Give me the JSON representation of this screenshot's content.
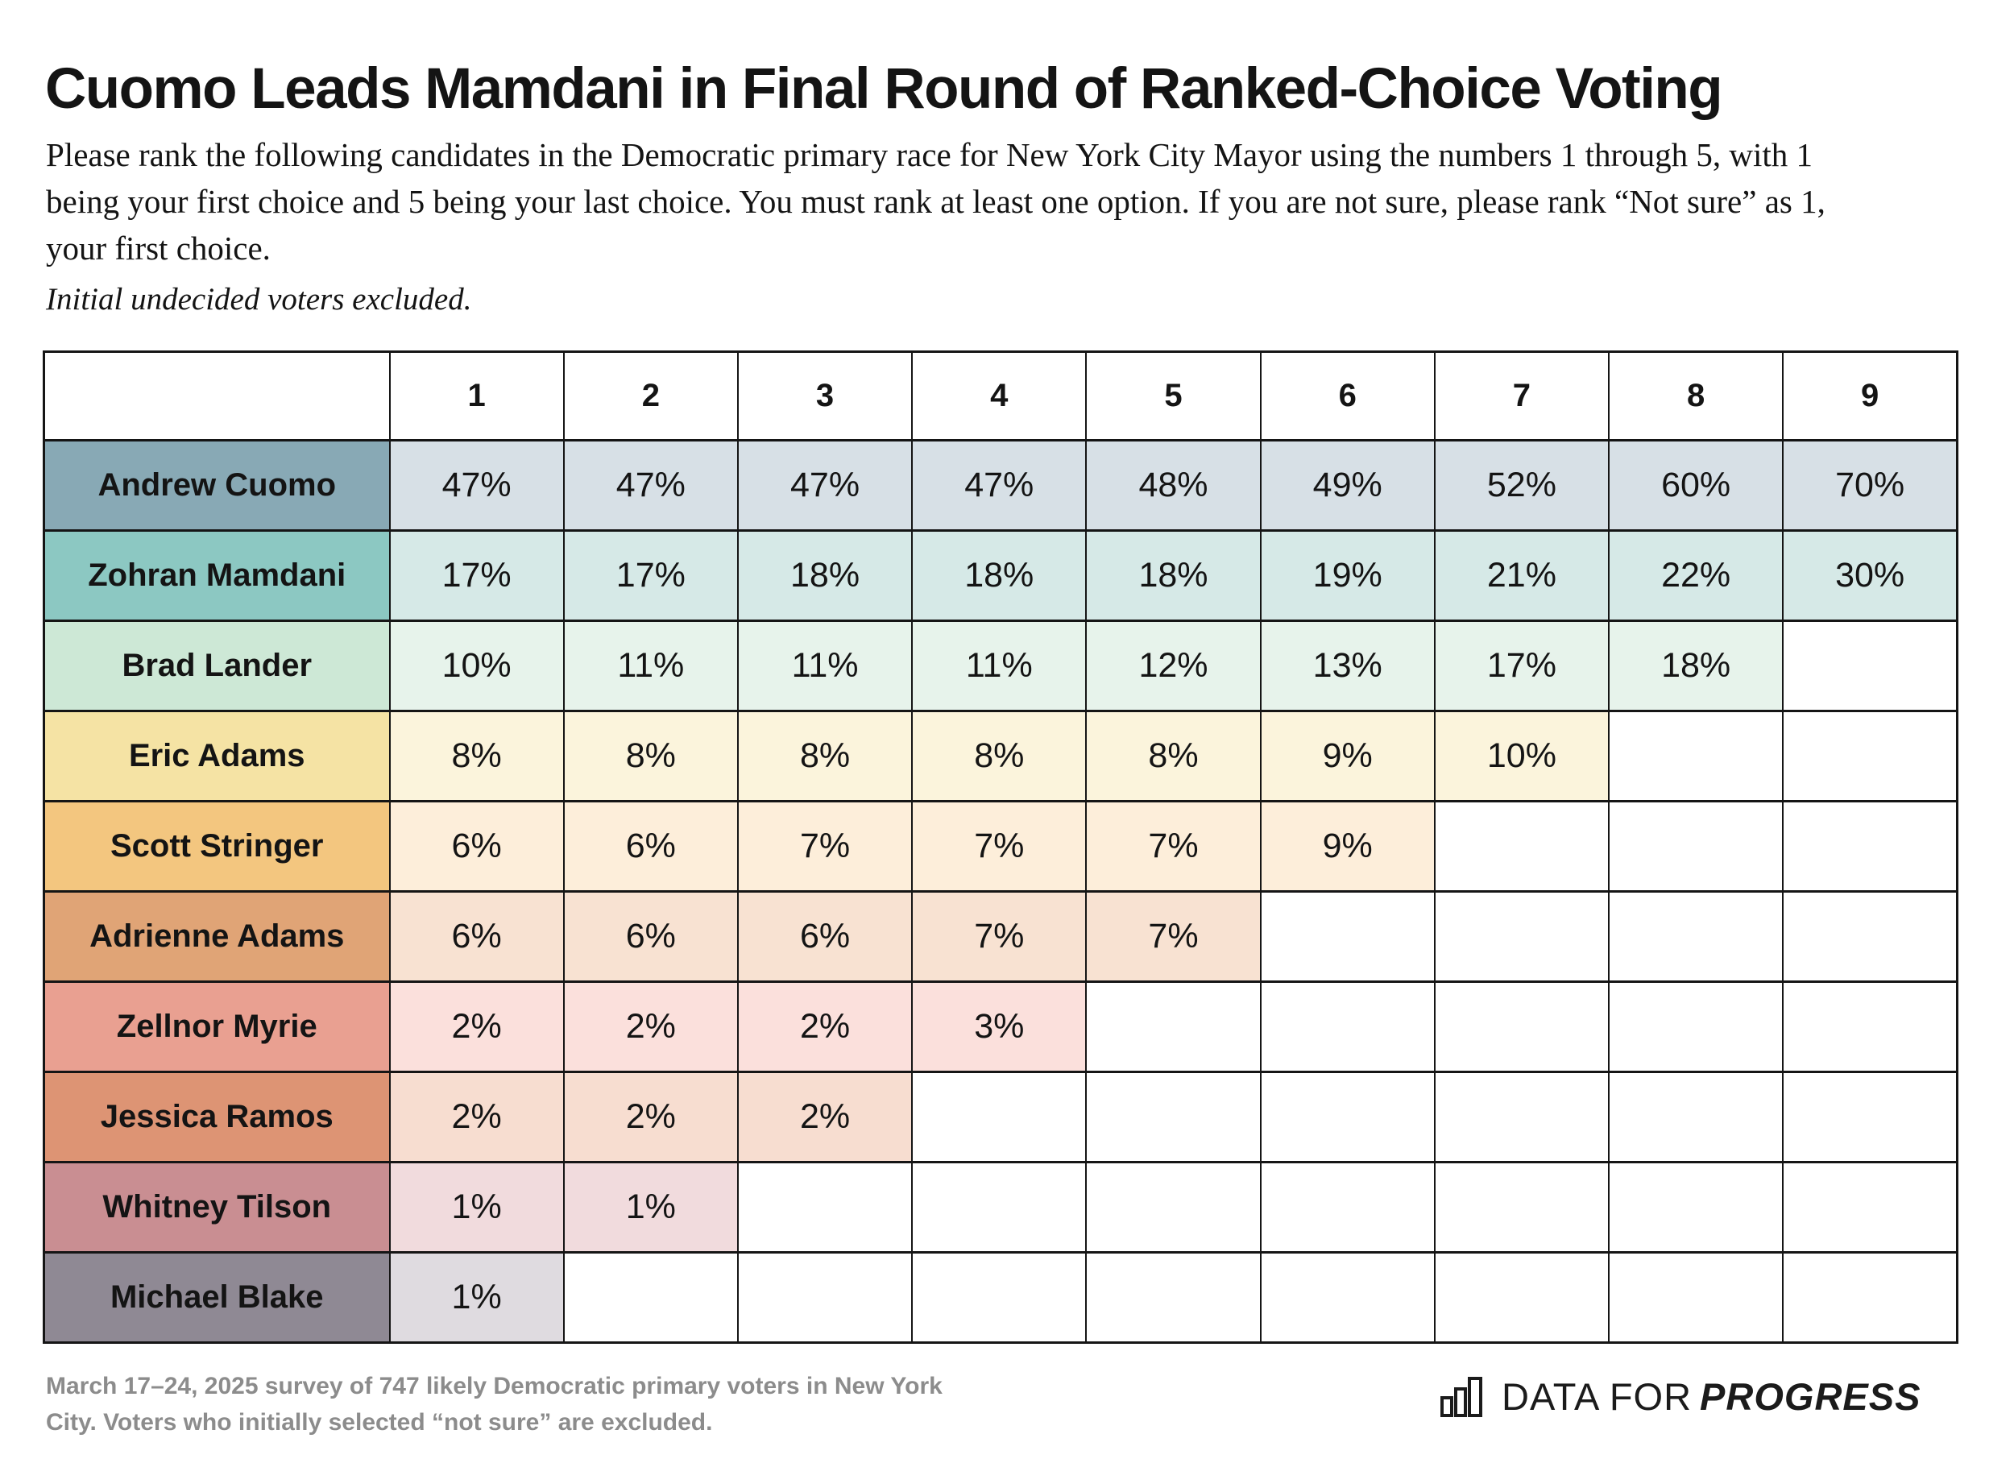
{
  "header": {
    "title": "Cuomo Leads Mamdani in Final Round of Ranked-Choice Voting",
    "subtitle_lines": [
      "Please rank the following candidates in the Democratic primary race for New York City Mayor using the numbers 1 through 5, with 1",
      "being your first choice and 5 being your last choice. You must rank at least one option. If you are not sure, please rank “Not sure” as 1,",
      "your first choice."
    ],
    "note": "Initial undecided voters excluded."
  },
  "chart_data": {
    "type": "table",
    "title": "Cuomo Leads Mamdani in Final Round of Ranked-Choice Voting",
    "corner_label": "",
    "columns": [
      "1",
      "2",
      "3",
      "4",
      "5",
      "6",
      "7",
      "8",
      "9"
    ],
    "rows": [
      {
        "candidate": "Andrew Cuomo",
        "header_color": "#88a9b5",
        "cell_color": "#d7e0e6",
        "values": [
          "47%",
          "47%",
          "47%",
          "47%",
          "48%",
          "49%",
          "52%",
          "60%",
          "70%"
        ]
      },
      {
        "candidate": "Zohran Mamdani",
        "header_color": "#8cc8c2",
        "cell_color": "#d6e9e7",
        "values": [
          "17%",
          "17%",
          "18%",
          "18%",
          "18%",
          "19%",
          "21%",
          "22%",
          "30%"
        ]
      },
      {
        "candidate": "Brad Lander",
        "header_color": "#cde8d6",
        "cell_color": "#e7f3eb",
        "values": [
          "10%",
          "11%",
          "11%",
          "11%",
          "12%",
          "13%",
          "17%",
          "18%",
          null
        ]
      },
      {
        "candidate": "Eric Adams",
        "header_color": "#f5e3a4",
        "cell_color": "#fbf4dc",
        "values": [
          "8%",
          "8%",
          "8%",
          "8%",
          "8%",
          "9%",
          "10%",
          null,
          null
        ]
      },
      {
        "candidate": "Scott Stringer",
        "header_color": "#f3c67f",
        "cell_color": "#fdeeda",
        "values": [
          "6%",
          "6%",
          "7%",
          "7%",
          "7%",
          "9%",
          null,
          null,
          null
        ]
      },
      {
        "candidate": "Adrienne Adams",
        "header_color": "#e0a476",
        "cell_color": "#f8e2d2",
        "values": [
          "6%",
          "6%",
          "6%",
          "7%",
          "7%",
          null,
          null,
          null,
          null
        ]
      },
      {
        "candidate": "Zellnor Myrie",
        "header_color": "#e9a091",
        "cell_color": "#fbe0dc",
        "values": [
          "2%",
          "2%",
          "2%",
          "3%",
          null,
          null,
          null,
          null,
          null
        ]
      },
      {
        "candidate": "Jessica Ramos",
        "header_color": "#dd9474",
        "cell_color": "#f7ddd0",
        "values": [
          "2%",
          "2%",
          "2%",
          null,
          null,
          null,
          null,
          null,
          null
        ]
      },
      {
        "candidate": "Whitney Tilson",
        "header_color": "#c98e92",
        "cell_color": "#f1dbdd",
        "values": [
          "1%",
          "1%",
          null,
          null,
          null,
          null,
          null,
          null,
          null
        ]
      },
      {
        "candidate": "Michael Blake",
        "header_color": "#8f8994",
        "cell_color": "#dfdbe0",
        "values": [
          "1%",
          null,
          null,
          null,
          null,
          null,
          null,
          null,
          null
        ]
      }
    ],
    "layout": {
      "grid": true,
      "blank_cell_color": "#ffffff",
      "legend": "none"
    }
  },
  "footer": {
    "lines": [
      "March 17–24, 2025 survey of 747 likely Democratic primary voters in New York",
      "City. Voters who initially selected “not sure” are excluded."
    ],
    "logo": {
      "icon": "bar-chart-icon",
      "prefix": "DATA FOR",
      "name": "PROGRESS"
    }
  },
  "colors": {
    "text": "#141414",
    "border": "#151515",
    "footer_text": "#8c8c8c"
  }
}
